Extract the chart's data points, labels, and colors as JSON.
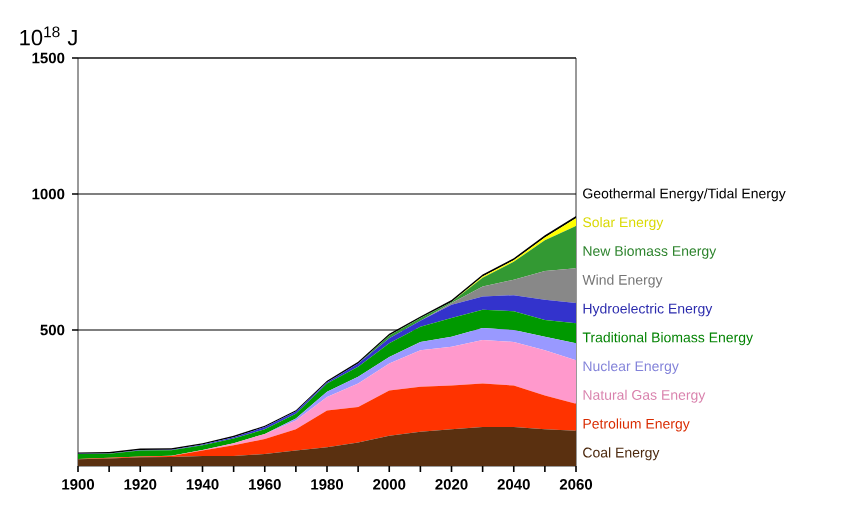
{
  "chart_data": {
    "type": "area",
    "stacked": true,
    "ylabel": "10$^{18}$ J",
    "x": [
      1900,
      1910,
      1920,
      1930,
      1940,
      1950,
      1960,
      1970,
      1980,
      1990,
      2000,
      2010,
      2020,
      2030,
      2040,
      2050,
      2060
    ],
    "xlim": [
      1900,
      2060
    ],
    "xticks": [
      1900,
      {
        "value": 1910,
        "label": null
      },
      1920,
      {
        "value": 1930,
        "label": null
      },
      1940,
      {
        "value": 1950,
        "label": null
      },
      1960,
      {
        "value": 1970,
        "label": null
      },
      1980,
      {
        "value": 1990,
        "label": null
      },
      2000,
      {
        "value": 2010,
        "label": null
      },
      2020,
      {
        "value": 2030,
        "label": null
      },
      2040,
      {
        "value": 2050,
        "label": null
      },
      2060
    ],
    "ylim": [
      0,
      1500
    ],
    "yticks": [
      500,
      1000,
      1500
    ],
    "grid": "y",
    "legend": "right",
    "series": [
      {
        "name": "Coal Energy",
        "color": "#5a3010",
        "values": [
          25,
          28,
          32,
          33,
          37,
          37,
          44,
          57,
          69,
          86,
          111,
          126,
          135,
          143,
          143,
          135,
          130
        ]
      },
      {
        "name": "Petrolium Energy",
        "color": "#ff3300",
        "values": [
          1,
          2,
          3,
          4,
          20,
          39,
          55,
          78,
          135,
          131,
          167,
          165,
          161,
          160,
          153,
          124,
          99
        ]
      },
      {
        "name": "Natural Gas Energy",
        "color": "#ff99cc",
        "values": [
          0,
          0,
          0,
          1,
          2,
          8,
          19,
          32,
          50,
          86,
          99,
          135,
          142,
          160,
          160,
          167,
          160
        ]
      },
      {
        "name": "Nuclear Energy",
        "color": "#9999ff",
        "values": [
          0,
          0,
          0,
          0,
          0,
          0,
          0,
          8,
          19,
          25,
          24,
          30,
          37,
          44,
          44,
          49,
          62
        ]
      },
      {
        "name": "Traditional Biomass Energy",
        "color": "#009900",
        "values": [
          18,
          15,
          22,
          20,
          17,
          17,
          17,
          17,
          30,
          37,
          50,
          56,
          69,
          67,
          69,
          62,
          74
        ]
      },
      {
        "name": "Hydroelectric Energy",
        "color": "#3333cc",
        "values": [
          1,
          1,
          2,
          2,
          3,
          5,
          8,
          8,
          5,
          12,
          19,
          22,
          49,
          49,
          59,
          74,
          74
        ]
      },
      {
        "name": "Wind Energy",
        "color": "#888888",
        "values": [
          0,
          0,
          0,
          0,
          0,
          0,
          0,
          0,
          0,
          0,
          0,
          0,
          6,
          37,
          57,
          106,
          128
        ]
      },
      {
        "name": "New Biomass Energy",
        "color": "#339933",
        "values": [
          0,
          0,
          0,
          0,
          0,
          0,
          0,
          0,
          0,
          0,
          10,
          10,
          4,
          32,
          66,
          113,
          155
        ]
      },
      {
        "name": "Solar Energy",
        "color": "#ffff00",
        "values": [
          0,
          0,
          0,
          0,
          0,
          0,
          0,
          0,
          0,
          0,
          0,
          0,
          0,
          5,
          5,
          10,
          29
        ]
      },
      {
        "name": "Geothermal Energy/Tidal Energy",
        "color": "#000000",
        "values": [
          5,
          5,
          5,
          5,
          5,
          5,
          5,
          5,
          5,
          6,
          6,
          6,
          7,
          7,
          8,
          8,
          8
        ]
      }
    ]
  }
}
